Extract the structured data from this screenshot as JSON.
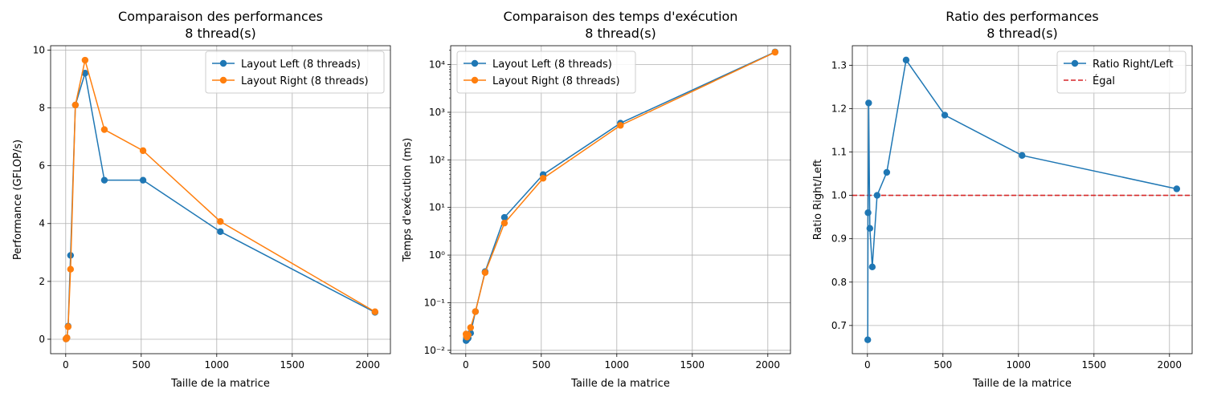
{
  "colors": {
    "left": "#1f77b4",
    "right": "#ff7f0e",
    "ratio": "#1f77b4",
    "equal": "#d62728",
    "grid": "#b0b0b0"
  },
  "chart_data": [
    {
      "type": "line",
      "title": "Comparaison des performances",
      "subtitle": "8 thread(s)",
      "xlabel": "Taille de la matrice",
      "ylabel": "Performance (GFLOP/s)",
      "xlim": [
        -100,
        2150
      ],
      "ylim": [
        -0.5,
        10.15
      ],
      "xticks": [
        0,
        500,
        1000,
        1500,
        2000
      ],
      "yticks": [
        0,
        2,
        4,
        6,
        8,
        10
      ],
      "grid": true,
      "legend": "top-right",
      "x": [
        2,
        4,
        8,
        16,
        32,
        64,
        128,
        256,
        512,
        1024,
        2048
      ],
      "series": [
        {
          "name": "Layout Left (8 threads)",
          "color": "left",
          "values": [
            0.01,
            0.02,
            0.05,
            0.45,
            2.9,
            8.1,
            9.2,
            5.5,
            5.5,
            3.72,
            0.93
          ]
        },
        {
          "name": "Layout Right (8 threads)",
          "color": "right",
          "values": [
            0.01,
            0.02,
            0.05,
            0.43,
            2.42,
            8.1,
            9.65,
            7.25,
            6.52,
            4.07,
            0.95
          ]
        }
      ]
    },
    {
      "type": "line",
      "title": "Comparaison des temps d'exécution",
      "subtitle": "8 thread(s)",
      "xlabel": "Taille de la matrice",
      "ylabel": "Temps d'exécution (ms)",
      "yscale": "log",
      "xlim": [
        -100,
        2150
      ],
      "ylim": [
        0.0085,
        25000
      ],
      "xticks": [
        0,
        500,
        1000,
        1500,
        2000
      ],
      "yticks": [
        0.01,
        0.1,
        1,
        10,
        100,
        1000,
        10000
      ],
      "ytick_labels": [
        "10⁻²",
        "10⁻¹",
        "10⁰",
        "10¹",
        "10²",
        "10³",
        "10⁴"
      ],
      "grid": true,
      "legend": "top-left",
      "x": [
        2,
        4,
        8,
        16,
        32,
        64,
        128,
        256,
        512,
        1024,
        2048
      ],
      "series": [
        {
          "name": "Layout Left (8 threads)",
          "color": "left",
          "values": [
            0.016,
            0.018,
            0.017,
            0.018,
            0.023,
            0.065,
            0.45,
            6.2,
            49,
            590,
            18500
          ]
        },
        {
          "name": "Layout Right (8 threads)",
          "color": "right",
          "values": [
            0.022,
            0.02,
            0.019,
            0.021,
            0.03,
            0.065,
            0.43,
            4.7,
            41,
            530,
            18200
          ]
        }
      ]
    },
    {
      "type": "line",
      "title": "Ratio des performances",
      "subtitle": "8 thread(s)",
      "xlabel": "Taille de la matrice",
      "ylabel": "Ratio Right/Left",
      "xlim": [
        -100,
        2150
      ],
      "ylim": [
        0.635,
        1.345
      ],
      "xticks": [
        0,
        500,
        1000,
        1500,
        2000
      ],
      "yticks": [
        0.7,
        0.8,
        0.9,
        1.0,
        1.1,
        1.2,
        1.3
      ],
      "ytick_labels": [
        "0.7",
        "0.8",
        "0.9",
        "1.0",
        "1.1",
        "1.2",
        "1.3"
      ],
      "grid": true,
      "legend": "top-right",
      "hline": {
        "y": 1.0,
        "name": "Égal",
        "color": "equal"
      },
      "x": [
        2,
        4,
        8,
        16,
        32,
        64,
        128,
        256,
        512,
        1024,
        2048
      ],
      "series": [
        {
          "name": "Ratio Right/Left",
          "color": "ratio",
          "values": [
            0.667,
            0.96,
            1.213,
            0.924,
            0.835,
            1.0,
            1.053,
            1.312,
            1.185,
            1.092,
            1.015
          ]
        }
      ]
    }
  ]
}
